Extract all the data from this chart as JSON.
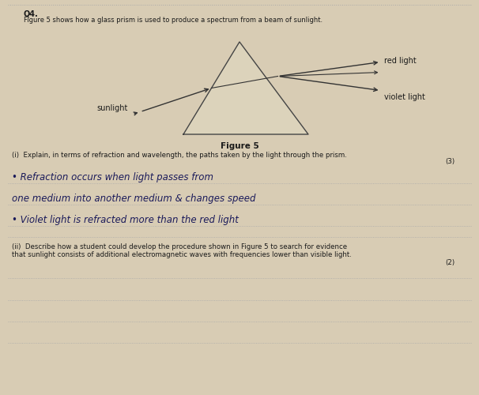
{
  "bg_color": "#b8a888",
  "page_color": "#d8ccb4",
  "title_q": "Q4.",
  "subtitle": "Figure 5 shows how a glass prism is used to produce a spectrum from a beam of sunlight.",
  "figure_label": "Figure 5",
  "label_sunlight": "sunlight",
  "label_red": "red light",
  "label_violet": "violet light",
  "q_i_text": "(i)  Explain, in terms of refraction and wavelength, the paths taken by the light through the prism.",
  "q_i_mark": "(3)",
  "hw_line1": "• Refraction occurs when light passes from",
  "hw_line2": "one medium into another medium & changes speed",
  "hw_line3": "• Violet light is refracted more than the red light",
  "q_ii_text": "(ii)  Describe how a student could develop the procedure shown in Figure 5 to search for evidence\nthat sunlight consists of additional electromagnetic waves with frequencies lower than visible light.",
  "q_ii_mark": "(2)",
  "prism_edge_color": "#444444",
  "arrow_color": "#333333",
  "text_color": "#1a1a1a",
  "handwritten_color": "#1a1a5a",
  "dotted_color": "#aaaaaa",
  "top_dotted_color": "#aaaaaa"
}
